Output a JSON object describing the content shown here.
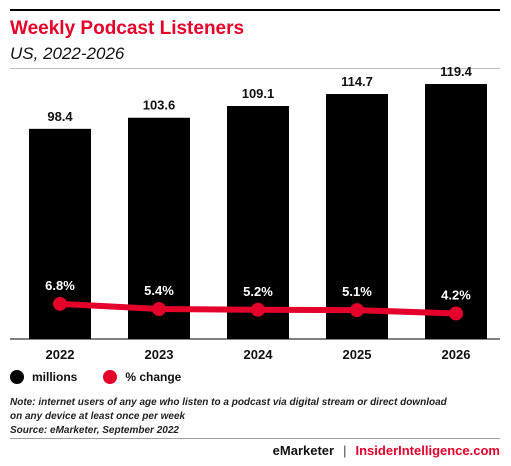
{
  "header": {
    "title": "Weekly Podcast Listeners",
    "subtitle": "US, 2022-2026"
  },
  "colors": {
    "accent": "#e4002b",
    "bar": "#000000",
    "line": "#e4002b"
  },
  "chart_data": {
    "type": "bar",
    "title": "Weekly Podcast Listeners",
    "subtitle": "US, 2022-2026",
    "categories": [
      "2022",
      "2023",
      "2024",
      "2025",
      "2026"
    ],
    "series": [
      {
        "name": "millions",
        "type": "bar",
        "values": [
          98.4,
          103.6,
          109.1,
          114.7,
          119.4
        ],
        "labels": [
          "98.4",
          "103.6",
          "109.1",
          "114.7",
          "119.4"
        ]
      },
      {
        "name": "% change",
        "type": "line",
        "values": [
          6.8,
          5.4,
          5.2,
          5.1,
          4.2
        ],
        "labels": [
          "6.8%",
          "5.4%",
          "5.2%",
          "5.1%",
          "4.2%"
        ]
      }
    ],
    "bar_ylim": [
      0,
      140
    ],
    "line_ylim": [
      0,
      30
    ],
    "grid": false,
    "legend_position": "bottom-left"
  },
  "legend": {
    "items": [
      "millions",
      "% change"
    ]
  },
  "note": {
    "lines": [
      "Note: internet users of any age who listen to a podcast via digital stream or direct download",
      "on any device at least once per week",
      "Source: eMarketer, September 2022"
    ]
  },
  "footer": {
    "brand_a": "eMarketer",
    "separator": "|",
    "brand_b": "InsiderIntelligence.com"
  }
}
